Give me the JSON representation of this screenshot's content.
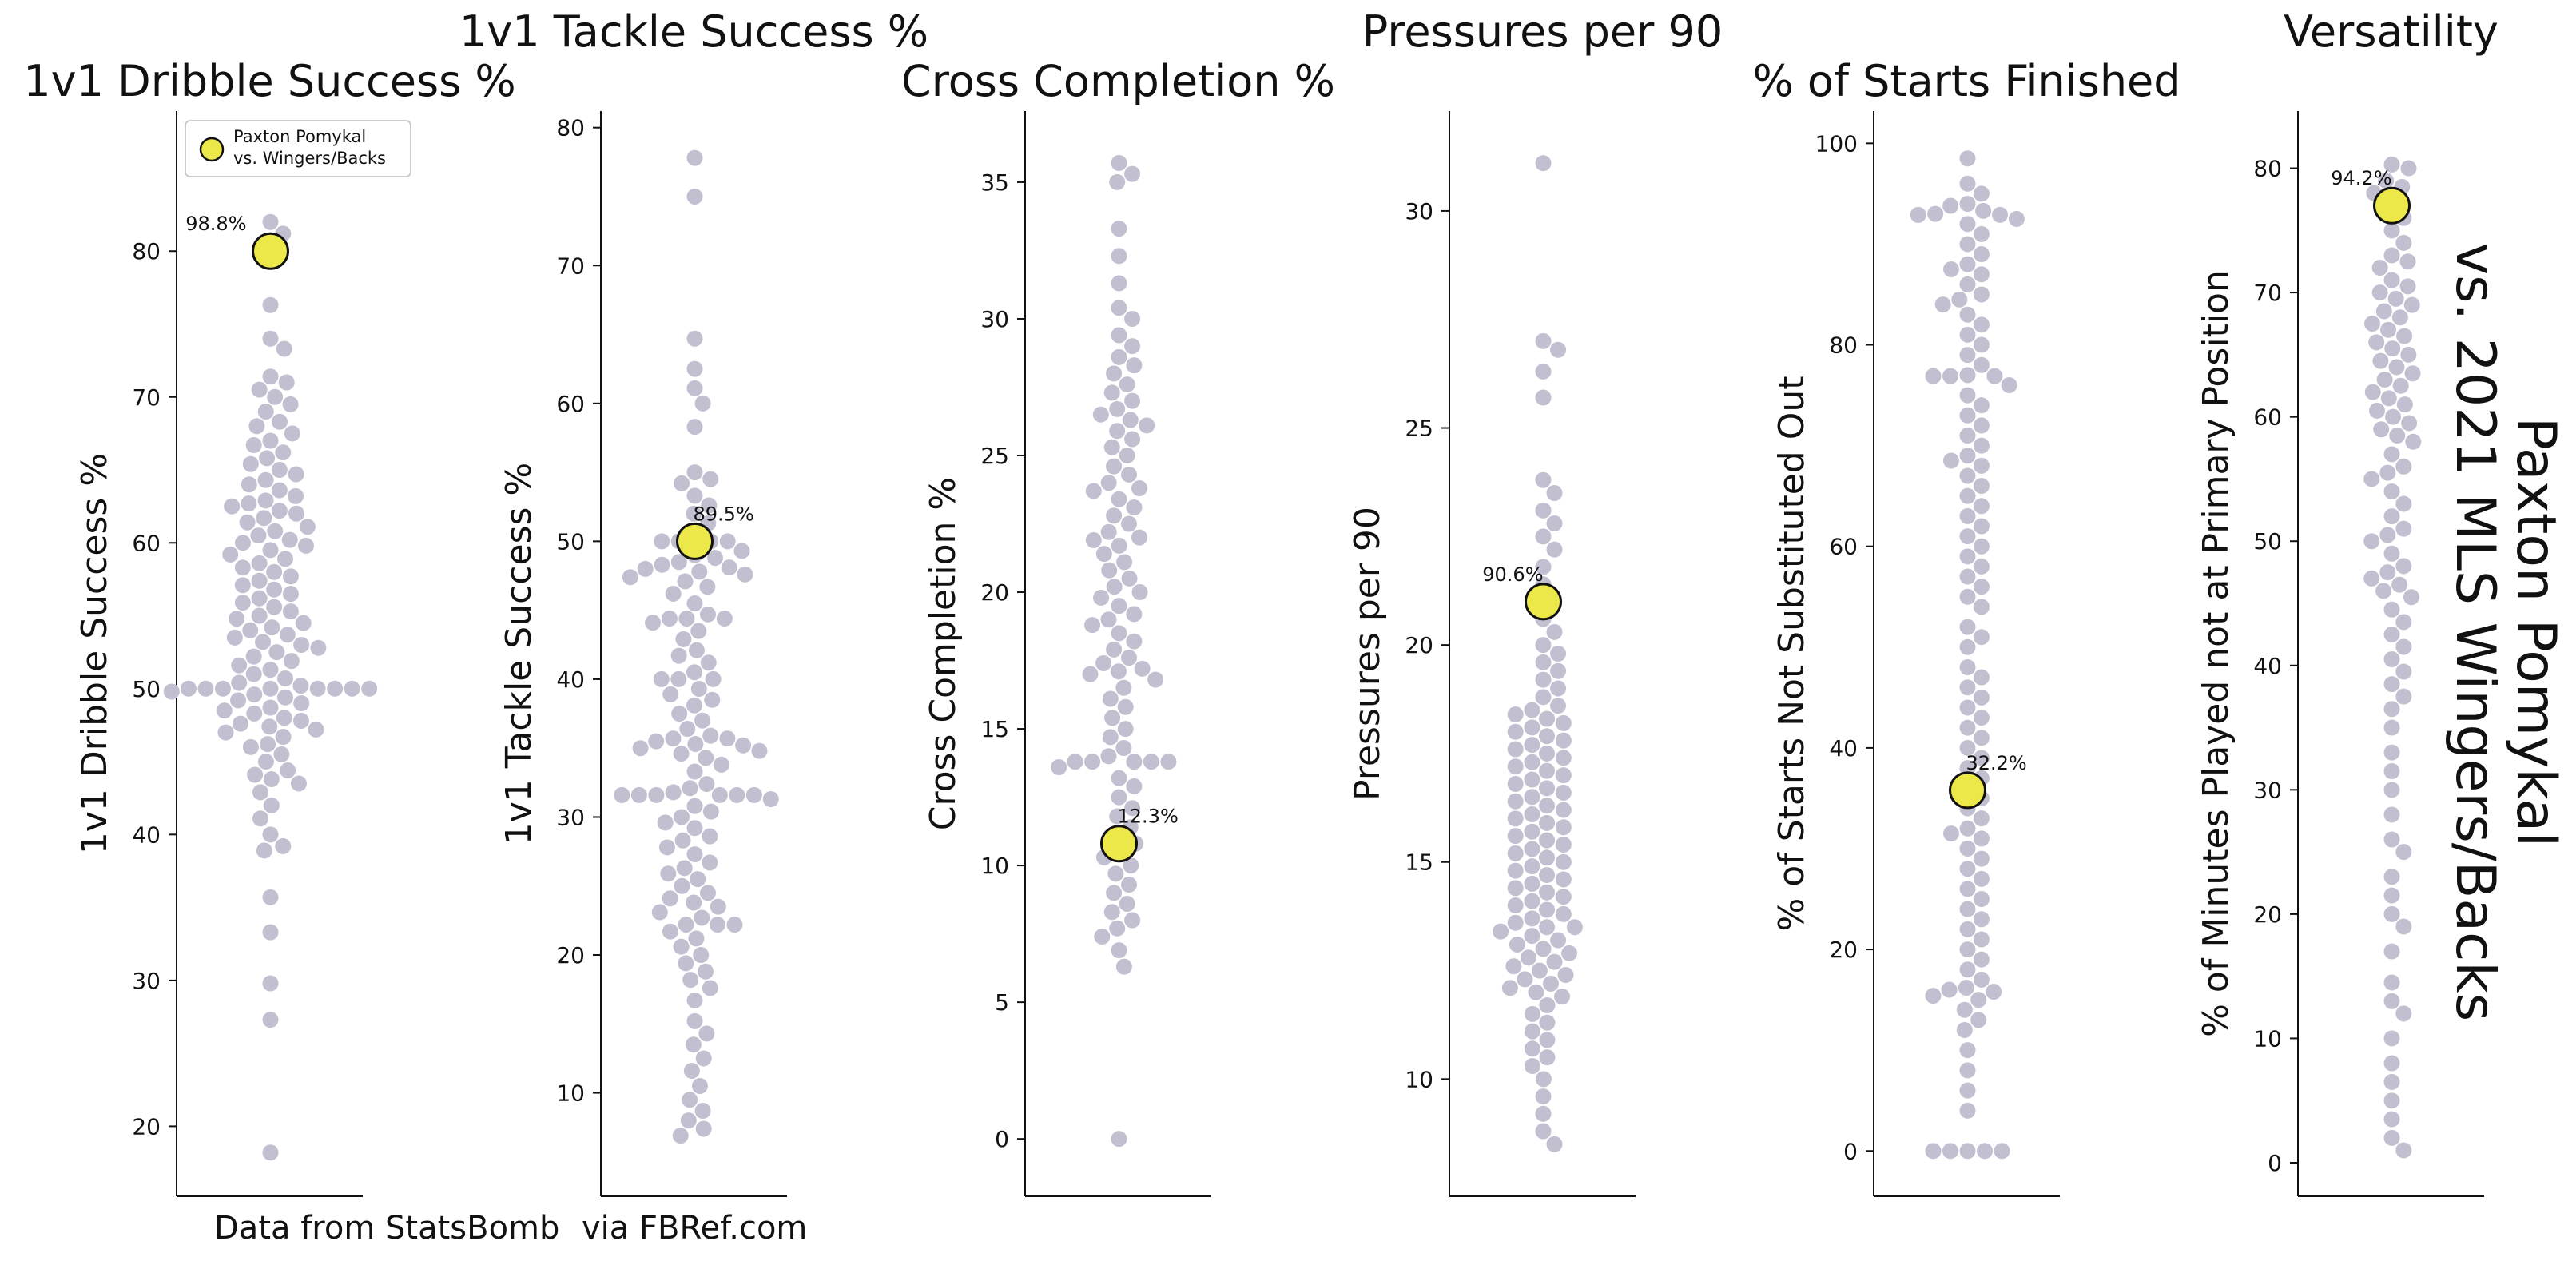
{
  "suptitle": {
    "line1": "Paxton Pomykal",
    "line2": "vs. 2021 MLS Wingers/Backs"
  },
  "caption": {
    "left": "Data from StatsBomb",
    "right": "via FBRef.com"
  },
  "legend": {
    "line1": "Paxton Pomykal",
    "line2": "vs. Wingers/Backs"
  },
  "colors": {
    "dots": "#c2bfd0",
    "player": "#ece84a",
    "player_edge": "#111111",
    "axis": "#111111"
  },
  "chart_data": [
    {
      "type": "scatter",
      "style": "swarm",
      "title": "1v1 Dribble Success %",
      "ylabel": "1v1 Dribble Success %",
      "ylim": [
        15.2,
        89.6
      ],
      "yticks": [
        20,
        30,
        40,
        50,
        60,
        70,
        80
      ],
      "player": {
        "value": 80,
        "label": "98.8%"
      },
      "values": [
        18.2,
        27.3,
        29.8,
        33.3,
        35.7,
        38.9,
        39.2,
        40.0,
        41.1,
        42.0,
        42.9,
        43.5,
        43.8,
        44.1,
        44.4,
        45.0,
        45.5,
        46.0,
        46.2,
        46.7,
        47.0,
        47.2,
        47.4,
        47.6,
        47.8,
        48.0,
        48.3,
        48.5,
        48.7,
        49.0,
        49.2,
        49.4,
        49.6,
        49.8,
        50.0,
        50.0,
        50.0,
        50.0,
        50.0,
        50.0,
        50.0,
        50.0,
        50.2,
        50.4,
        50.7,
        51.0,
        51.3,
        51.6,
        51.9,
        52.2,
        52.5,
        52.8,
        53.0,
        53.2,
        53.5,
        53.7,
        54.0,
        54.2,
        54.5,
        54.8,
        55.0,
        55.3,
        55.6,
        55.9,
        56.2,
        56.5,
        56.8,
        57.1,
        57.4,
        57.7,
        58.0,
        58.3,
        58.6,
        58.9,
        59.2,
        59.5,
        59.8,
        60.0,
        60.2,
        60.5,
        60.8,
        61.1,
        61.4,
        61.7,
        62.0,
        62.2,
        62.5,
        62.7,
        62.9,
        63.2,
        63.6,
        64.0,
        64.3,
        64.7,
        65.0,
        65.4,
        65.8,
        66.2,
        66.7,
        67.0,
        67.5,
        68.0,
        68.3,
        69.0,
        69.5,
        70.0,
        70.5,
        71.0,
        71.4,
        73.3,
        74.0,
        76.3,
        81.2,
        82.0
      ]
    },
    {
      "type": "scatter",
      "style": "swarm",
      "title": "1v1 Tackle Success %",
      "ylabel": "1v1 Tackle Success %",
      "ylim": [
        2.5,
        81.2
      ],
      "yticks": [
        10,
        20,
        30,
        40,
        50,
        60,
        70,
        80
      ],
      "player": {
        "value": 50,
        "label": "89.5%"
      },
      "values": [
        6.9,
        7.4,
        8.0,
        8.7,
        9.5,
        10.5,
        11.6,
        12.5,
        13.5,
        14.3,
        15.2,
        16.7,
        17.6,
        18.2,
        18.8,
        19.4,
        20.0,
        20.6,
        21.2,
        21.7,
        22.2,
        22.2,
        22.2,
        22.7,
        23.1,
        23.5,
        23.8,
        24.1,
        24.5,
        25.0,
        25.5,
        25.9,
        26.3,
        26.7,
        27.3,
        27.8,
        28.3,
        28.6,
        29.2,
        29.6,
        30.0,
        30.4,
        30.8,
        31.3,
        31.6,
        31.6,
        31.6,
        31.6,
        31.6,
        31.6,
        31.8,
        32.1,
        32.4,
        33.3,
        33.8,
        34.3,
        34.6,
        34.8,
        35.0,
        35.2,
        35.3,
        35.5,
        35.7,
        35.7,
        35.9,
        36.4,
        37.0,
        37.5,
        38.1,
        38.5,
        38.9,
        39.3,
        40.0,
        40.0,
        40.0,
        40.5,
        41.2,
        41.7,
        42.1,
        42.9,
        43.5,
        44.1,
        44.4,
        44.4,
        44.4,
        44.7,
        45.5,
        46.2,
        46.7,
        47.1,
        47.4,
        47.6,
        47.8,
        48.0,
        48.1,
        48.3,
        48.5,
        48.8,
        49.0,
        49.3,
        50.0,
        50.0,
        50.0,
        50.0,
        50.5,
        51.3,
        52.0,
        52.6,
        53.3,
        54.2,
        54.5,
        55.0,
        58.3,
        60.0,
        61.1,
        62.5,
        64.7,
        75.0,
        77.8
      ]
    },
    {
      "type": "scatter",
      "style": "swarm",
      "title": "Cross Completion %",
      "ylabel": "Cross Completion %",
      "ylim": [
        -2.1,
        37.6
      ],
      "yticks": [
        0,
        5,
        10,
        15,
        20,
        25,
        30,
        35
      ],
      "player": {
        "value": 10.8,
        "label": "12.3%"
      },
      "values": [
        0,
        6.3,
        6.9,
        7.4,
        7.7,
        8.0,
        8.3,
        8.6,
        9.0,
        9.3,
        9.7,
        10.0,
        10.3,
        10.5,
        10.8,
        11.1,
        11.4,
        11.8,
        12.1,
        12.5,
        12.9,
        13.2,
        13.6,
        13.8,
        13.8,
        13.8,
        13.8,
        13.8,
        14.0,
        14.3,
        14.7,
        15.0,
        15.4,
        15.8,
        16.1,
        16.5,
        16.8,
        17.0,
        17.1,
        17.2,
        17.4,
        17.6,
        17.9,
        18.2,
        18.5,
        18.8,
        19.0,
        19.2,
        19.5,
        19.8,
        20.0,
        20.2,
        20.5,
        20.8,
        21.1,
        21.4,
        21.7,
        21.9,
        22.0,
        22.2,
        22.5,
        22.8,
        23.1,
        23.4,
        23.7,
        23.8,
        24.0,
        24.3,
        24.6,
        25.0,
        25.3,
        25.6,
        25.9,
        26.1,
        26.3,
        26.5,
        26.7,
        27.0,
        27.3,
        27.6,
        28.0,
        28.3,
        28.6,
        29.0,
        29.4,
        30.0,
        30.4,
        31.3,
        32.3,
        33.3,
        35.0,
        35.3,
        35.7
      ]
    },
    {
      "type": "scatter",
      "style": "swarm",
      "title": "Pressures per 90",
      "ylabel": "Pressures per 90",
      "ylim": [
        7.3,
        32.3
      ],
      "yticks": [
        10,
        15,
        20,
        25,
        30
      ],
      "player": {
        "value": 21.0,
        "label": "90.6%"
      },
      "values": [
        8.5,
        8.8,
        9.2,
        9.6,
        10.0,
        10.3,
        10.5,
        10.7,
        10.9,
        11.1,
        11.3,
        11.5,
        11.7,
        11.9,
        12.0,
        12.1,
        12.2,
        12.3,
        12.4,
        12.5,
        12.6,
        12.7,
        12.8,
        12.9,
        13.0,
        13.1,
        13.2,
        13.3,
        13.4,
        13.5,
        13.5,
        13.6,
        13.7,
        13.8,
        13.9,
        14.0,
        14.1,
        14.2,
        14.3,
        14.4,
        14.5,
        14.6,
        14.7,
        14.8,
        14.9,
        15.0,
        15.1,
        15.2,
        15.3,
        15.4,
        15.5,
        15.6,
        15.7,
        15.8,
        15.9,
        16.0,
        16.1,
        16.2,
        16.3,
        16.4,
        16.5,
        16.6,
        16.7,
        16.8,
        16.9,
        17.0,
        17.1,
        17.2,
        17.3,
        17.4,
        17.5,
        17.6,
        17.7,
        17.8,
        17.9,
        18.0,
        18.1,
        18.2,
        18.3,
        18.4,
        18.5,
        18.6,
        18.8,
        19.0,
        19.2,
        19.4,
        19.6,
        19.8,
        20.0,
        20.3,
        20.6,
        21.0,
        21.4,
        21.8,
        22.2,
        22.5,
        22.8,
        23.1,
        23.5,
        23.8,
        25.7,
        26.3,
        26.8,
        27.0,
        31.1
      ]
    },
    {
      "type": "scatter",
      "style": "swarm",
      "title": "% of Starts Finished",
      "ylabel": "% of Starts Not Substituted Out",
      "ylim": [
        -4.5,
        103.2
      ],
      "yticks": [
        0,
        20,
        40,
        60,
        80,
        100
      ],
      "player": {
        "value": 35.8,
        "label": "32.2%"
      },
      "values": [
        0,
        0,
        0,
        0,
        0,
        4.0,
        6.0,
        8.0,
        10.0,
        12.0,
        13.0,
        14.0,
        15.0,
        15.4,
        15.8,
        16.0,
        16.2,
        17.0,
        18.0,
        19.0,
        20.0,
        21.0,
        22.0,
        23.0,
        24.0,
        25.0,
        26.0,
        27.0,
        28.0,
        29.0,
        30.0,
        31.0,
        31.5,
        32.0,
        33.0,
        34.0,
        35.0,
        36.0,
        37.0,
        38.0,
        39.0,
        40.0,
        41.0,
        42.0,
        43.0,
        44.0,
        45.0,
        46.0,
        47.0,
        48.0,
        50.0,
        51.0,
        52.0,
        54.0,
        55.0,
        56.0,
        57.0,
        58.0,
        59.0,
        60.0,
        61.0,
        62.0,
        63.0,
        64.0,
        65.0,
        66.0,
        67.0,
        68.0,
        68.5,
        69.0,
        70.0,
        71.0,
        72.0,
        73.0,
        74.0,
        75.0,
        76.0,
        76.9,
        76.9,
        76.9,
        77.0,
        78.0,
        79.0,
        80.0,
        81.0,
        82.0,
        83.0,
        84.0,
        84.5,
        85.0,
        86.0,
        87.0,
        87.5,
        88.0,
        89.0,
        90.0,
        91.0,
        92.0,
        92.5,
        92.9,
        92.9,
        93.0,
        93.3,
        93.8,
        94.0,
        95.0,
        96.0,
        98.5
      ]
    },
    {
      "type": "scatter",
      "style": "swarm",
      "title": "Versatility",
      "ylabel": "% of Minutes Played not at Primary Position",
      "ylim": [
        -2.7,
        84.6
      ],
      "yticks": [
        0,
        10,
        20,
        30,
        40,
        50,
        60,
        70,
        80
      ],
      "player": {
        "value": 77,
        "label": "94.2%"
      },
      "values": [
        1.0,
        2.0,
        3.5,
        5.0,
        6.5,
        8.0,
        10.0,
        12.0,
        13.0,
        14.5,
        17.0,
        19.0,
        20.0,
        21.5,
        23.0,
        25.0,
        26.0,
        28.0,
        30.0,
        31.5,
        33.0,
        35.0,
        36.5,
        37.5,
        38.5,
        39.5,
        40.5,
        41.5,
        42.5,
        43.5,
        44.5,
        45.5,
        46.0,
        46.5,
        47.0,
        47.5,
        48.0,
        49.0,
        50.0,
        50.5,
        51.0,
        52.0,
        53.0,
        54.0,
        55.0,
        55.5,
        56.0,
        57.0,
        58.0,
        58.5,
        59.0,
        59.5,
        60.0,
        60.5,
        61.0,
        61.5,
        62.0,
        62.5,
        63.0,
        63.5,
        64.0,
        64.5,
        65.0,
        65.5,
        66.0,
        66.5,
        67.0,
        67.5,
        68.0,
        68.5,
        69.0,
        69.5,
        70.0,
        70.5,
        71.0,
        72.0,
        72.5,
        73.0,
        74.0,
        75.0,
        76.0,
        77.0,
        78.0,
        78.5,
        79.0,
        80.0,
        80.3
      ]
    }
  ]
}
